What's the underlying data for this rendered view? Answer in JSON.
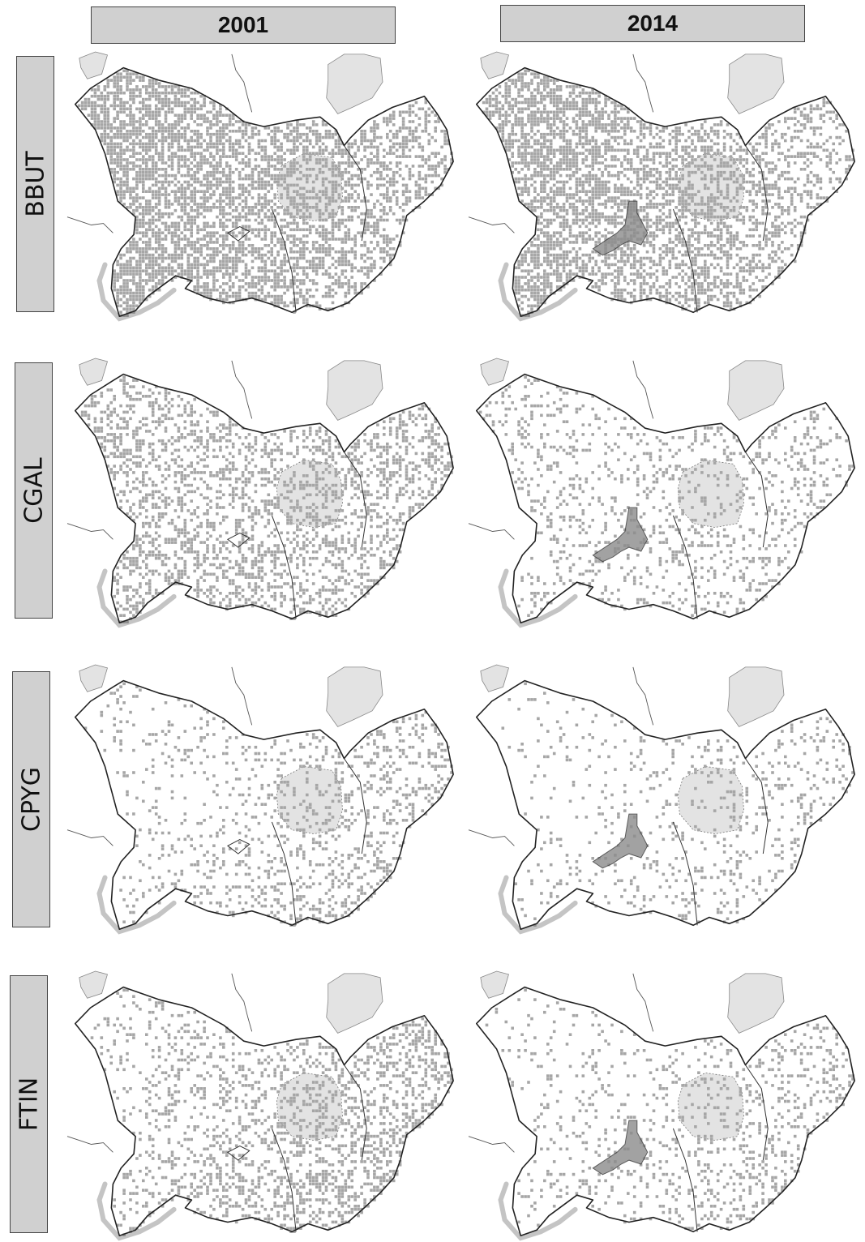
{
  "columns": [
    {
      "label": "2001"
    },
    {
      "label": "2014"
    }
  ],
  "rows": [
    {
      "label": "BBUT"
    },
    {
      "label": "CGAL"
    },
    {
      "label": "CPYG"
    },
    {
      "label": "FTIN"
    }
  ],
  "colors": {
    "background": "#ffffff",
    "label_box": "#d0d0d0",
    "occupied": "#a6a6a6",
    "protected_area": "#e3e3e3",
    "high_density": "#8c8c8c",
    "border": "#222222"
  },
  "panels": [
    {
      "species": "BBUT",
      "year": "2001",
      "occupancy": 0.62
    },
    {
      "species": "BBUT",
      "year": "2014",
      "occupancy": 0.55
    },
    {
      "species": "CGAL",
      "year": "2001",
      "occupancy": 0.35
    },
    {
      "species": "CGAL",
      "year": "2014",
      "occupancy": 0.18
    },
    {
      "species": "CPYG",
      "year": "2001",
      "occupancy": 0.12
    },
    {
      "species": "CPYG",
      "year": "2014",
      "occupancy": 0.07
    },
    {
      "species": "FTIN",
      "year": "2001",
      "occupancy": 0.2
    },
    {
      "species": "FTIN",
      "year": "2014",
      "occupancy": 0.1
    }
  ]
}
